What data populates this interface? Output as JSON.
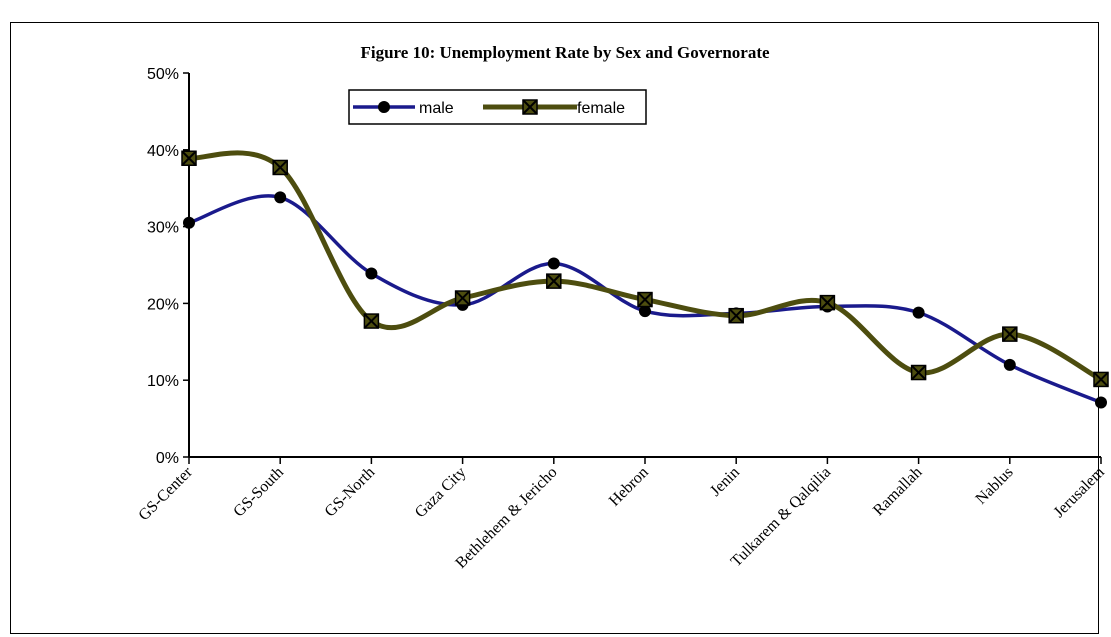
{
  "chart_data": {
    "type": "line",
    "title": "Figure 10: Unemployment Rate by Sex and Governorate",
    "xlabel": "",
    "ylabel": "",
    "ylim": [
      0,
      0.5
    ],
    "yticks": [
      "0%",
      "10%",
      "20%",
      "30%",
      "40%",
      "50%"
    ],
    "categories": [
      "GS-Center",
      "GS-South",
      "GS-North",
      "Gaza City",
      "Bethlehem & Jericho",
      "Hebron",
      "Jenin",
      "Tulkarem & Qalqilia",
      "Ramallah",
      "Nablus",
      "Jerusalem"
    ],
    "series": [
      {
        "name": "male",
        "color": "#1a1a8c",
        "marker": "circle",
        "values": [
          0.305,
          0.338,
          0.239,
          0.198,
          0.252,
          0.19,
          0.187,
          0.196,
          0.188,
          0.12,
          0.071
        ]
      },
      {
        "name": "female",
        "color": "#4d4d0f",
        "marker": "x-square",
        "values": [
          0.389,
          0.377,
          0.177,
          0.207,
          0.229,
          0.205,
          0.184,
          0.201,
          0.11,
          0.16,
          0.101
        ]
      }
    ],
    "grid": false,
    "legend": "top-center",
    "smooth": true
  }
}
